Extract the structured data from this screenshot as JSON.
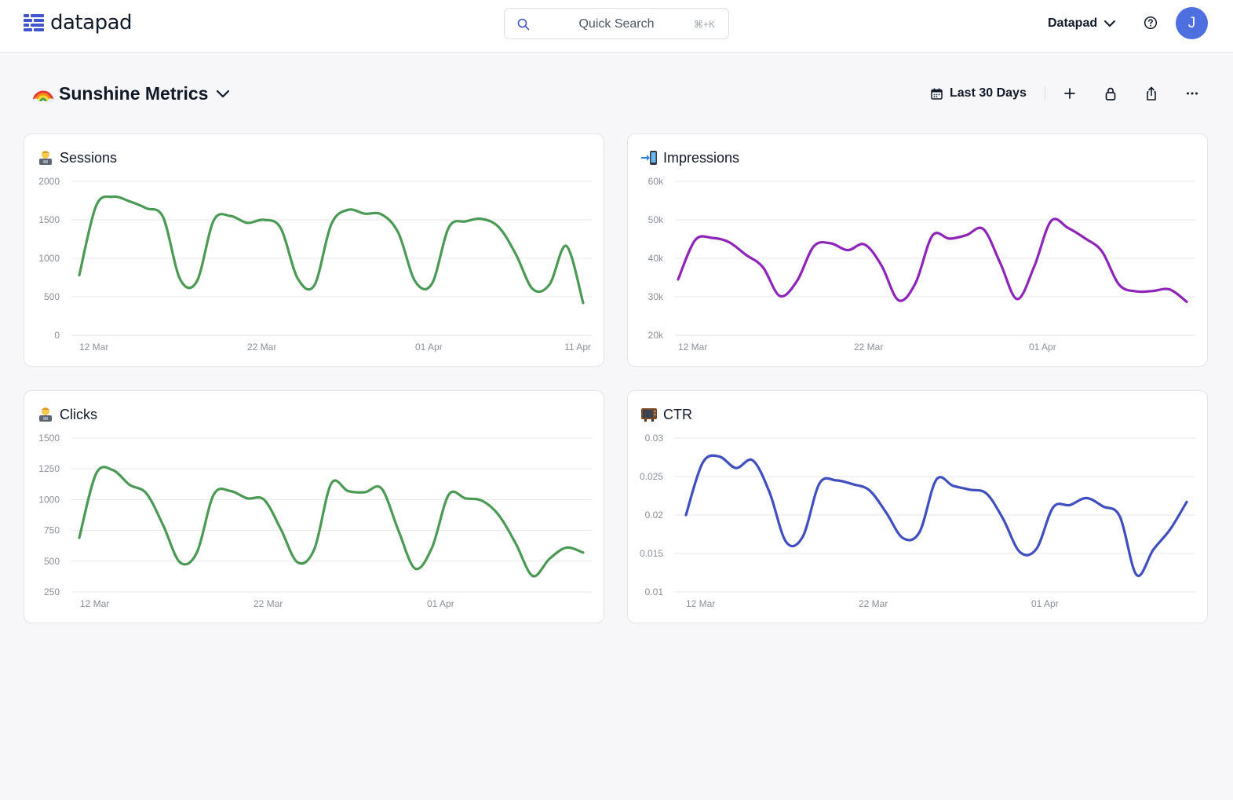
{
  "app": {
    "name": "datapad"
  },
  "header": {
    "search": {
      "label": "Quick Search",
      "shortcut": "⌘+K",
      "icon": "search-icon"
    },
    "workspace": {
      "label": "Datapad",
      "icon": "chevron-down-icon"
    },
    "help_icon": "question-circle-icon",
    "avatar_initial": "J"
  },
  "dashboard": {
    "title": "Sunshine Metrics",
    "title_emoji": "rainbow",
    "date_range": "Last 30 Days",
    "toolbar_icons": [
      "plus-icon",
      "lock-icon",
      "share-icon",
      "more-icon"
    ]
  },
  "colors": {
    "green": "#4a9a55",
    "purple": "#8e24b8",
    "blue": "#3f4fbf",
    "avatar": "#4f6fe0"
  },
  "cards": [
    {
      "title": "Sessions",
      "emoji": "technologist"
    },
    {
      "title": "Impressions",
      "emoji": "mobile-arrow"
    },
    {
      "title": "Clicks",
      "emoji": "technologist"
    },
    {
      "title": "CTR",
      "emoji": "television"
    }
  ],
  "chart_data": [
    {
      "type": "line",
      "title": "Sessions",
      "x_ticks": [
        "12 Mar",
        "22 Mar",
        "01 Apr",
        "11 Apr"
      ],
      "y_ticks": [
        "0",
        "500",
        "1000",
        "1500",
        "2000"
      ],
      "ylim": [
        0,
        2000
      ],
      "x_domain": [
        "2021-03-12",
        "2021-04-11"
      ],
      "color": "#4a9a55",
      "grid": true,
      "series": [
        {
          "x": [
            "2021-03-12",
            "2021-03-13",
            "2021-03-14",
            "2021-03-15",
            "2021-03-16",
            "2021-03-17",
            "2021-03-18",
            "2021-03-19",
            "2021-03-20",
            "2021-03-21",
            "2021-03-22",
            "2021-03-23",
            "2021-03-24",
            "2021-03-25",
            "2021-03-26",
            "2021-03-27",
            "2021-03-28",
            "2021-03-29",
            "2021-03-30",
            "2021-03-31",
            "2021-04-01",
            "2021-04-02",
            "2021-04-03",
            "2021-04-04",
            "2021-04-05",
            "2021-04-06",
            "2021-04-07",
            "2021-04-08",
            "2021-04-09",
            "2021-04-10",
            "2021-04-11"
          ],
          "values": [
            780,
            1680,
            1800,
            1740,
            1650,
            1530,
            730,
            700,
            1490,
            1550,
            1460,
            1500,
            1390,
            740,
            650,
            1440,
            1630,
            1580,
            1570,
            1330,
            700,
            670,
            1400,
            1480,
            1510,
            1400,
            1050,
            600,
            660,
            1160,
            420
          ]
        }
      ]
    },
    {
      "type": "line",
      "title": "Impressions",
      "x_ticks": [
        "12 Mar",
        "22 Mar",
        "01 Apr"
      ],
      "y_ticks": [
        "20k",
        "30k",
        "40k",
        "50k",
        "60k"
      ],
      "ylim": [
        20000,
        60000
      ],
      "x_domain": [
        "2021-03-12",
        "2021-04-11"
      ],
      "color": "#8e24b8",
      "grid": true,
      "series": [
        {
          "x": [
            "2021-03-12",
            "2021-03-13",
            "2021-03-14",
            "2021-03-15",
            "2021-03-16",
            "2021-03-17",
            "2021-03-18",
            "2021-03-19",
            "2021-03-20",
            "2021-03-21",
            "2021-03-22",
            "2021-03-23",
            "2021-03-24",
            "2021-03-25",
            "2021-03-26",
            "2021-03-27",
            "2021-03-28",
            "2021-03-29",
            "2021-03-30",
            "2021-03-31",
            "2021-04-01",
            "2021-04-02",
            "2021-04-03",
            "2021-04-04",
            "2021-04-05",
            "2021-04-06",
            "2021-04-07",
            "2021-04-08",
            "2021-04-09",
            "2021-04-10",
            "2021-04-11"
          ],
          "values": [
            34500,
            44700,
            45300,
            44200,
            40900,
            37700,
            30200,
            34000,
            43100,
            43900,
            42100,
            43600,
            38100,
            29100,
            33500,
            45900,
            45100,
            46000,
            47600,
            38800,
            29400,
            37800,
            49700,
            47900,
            45200,
            41800,
            33200,
            31400,
            31500,
            31900,
            28700
          ]
        }
      ]
    },
    {
      "type": "line",
      "title": "Clicks",
      "x_ticks": [
        "12 Mar",
        "22 Mar",
        "01 Apr"
      ],
      "y_ticks": [
        "250",
        "500",
        "750",
        "1000",
        "1250",
        "1500"
      ],
      "ylim": [
        250,
        1500
      ],
      "x_domain": [
        "2021-03-12",
        "2021-04-11"
      ],
      "color": "#4a9a55",
      "grid": true,
      "series": [
        {
          "x": [
            "2021-03-12",
            "2021-03-13",
            "2021-03-14",
            "2021-03-15",
            "2021-03-16",
            "2021-03-17",
            "2021-03-18",
            "2021-03-19",
            "2021-03-20",
            "2021-03-21",
            "2021-03-22",
            "2021-03-23",
            "2021-03-24",
            "2021-03-25",
            "2021-03-26",
            "2021-03-27",
            "2021-03-28",
            "2021-03-29",
            "2021-03-30",
            "2021-03-31",
            "2021-04-01",
            "2021-04-02",
            "2021-04-03",
            "2021-04-04",
            "2021-04-05",
            "2021-04-06",
            "2021-04-07",
            "2021-04-08",
            "2021-04-09",
            "2021-04-10",
            "2021-04-11"
          ],
          "values": [
            690,
            1210,
            1240,
            1120,
            1050,
            790,
            490,
            570,
            1040,
            1070,
            1010,
            1000,
            760,
            490,
            600,
            1130,
            1070,
            1060,
            1090,
            750,
            440,
            610,
            1040,
            1010,
            990,
            870,
            640,
            380,
            520,
            610,
            570
          ]
        }
      ]
    },
    {
      "type": "line",
      "title": "CTR",
      "x_ticks": [
        "12 Mar",
        "22 Mar",
        "01 Apr"
      ],
      "y_ticks": [
        "0.01",
        "0.015",
        "0.02",
        "0.025",
        "0.03"
      ],
      "ylim": [
        0.01,
        0.03
      ],
      "x_domain": [
        "2021-03-12",
        "2021-04-11"
      ],
      "color": "#3f4fbf",
      "grid": true,
      "series": [
        {
          "x": [
            "2021-03-12",
            "2021-03-13",
            "2021-03-14",
            "2021-03-15",
            "2021-03-16",
            "2021-03-17",
            "2021-03-18",
            "2021-03-19",
            "2021-03-20",
            "2021-03-21",
            "2021-03-22",
            "2021-03-23",
            "2021-03-24",
            "2021-03-25",
            "2021-03-26",
            "2021-03-27",
            "2021-03-28",
            "2021-03-29",
            "2021-03-30",
            "2021-03-31",
            "2021-04-01",
            "2021-04-02",
            "2021-04-03",
            "2021-04-04",
            "2021-04-05",
            "2021-04-06",
            "2021-04-07",
            "2021-04-08",
            "2021-04-09",
            "2021-04-10",
            "2021-04-11"
          ],
          "values": [
            0.02,
            0.0268,
            0.0276,
            0.0261,
            0.0271,
            0.023,
            0.0165,
            0.0172,
            0.0241,
            0.0245,
            0.024,
            0.0232,
            0.0203,
            0.017,
            0.0178,
            0.0246,
            0.0238,
            0.0233,
            0.0228,
            0.0195,
            0.0152,
            0.0156,
            0.021,
            0.0213,
            0.0222,
            0.0211,
            0.0198,
            0.0122,
            0.0155,
            0.0181,
            0.0217
          ]
        }
      ]
    }
  ]
}
